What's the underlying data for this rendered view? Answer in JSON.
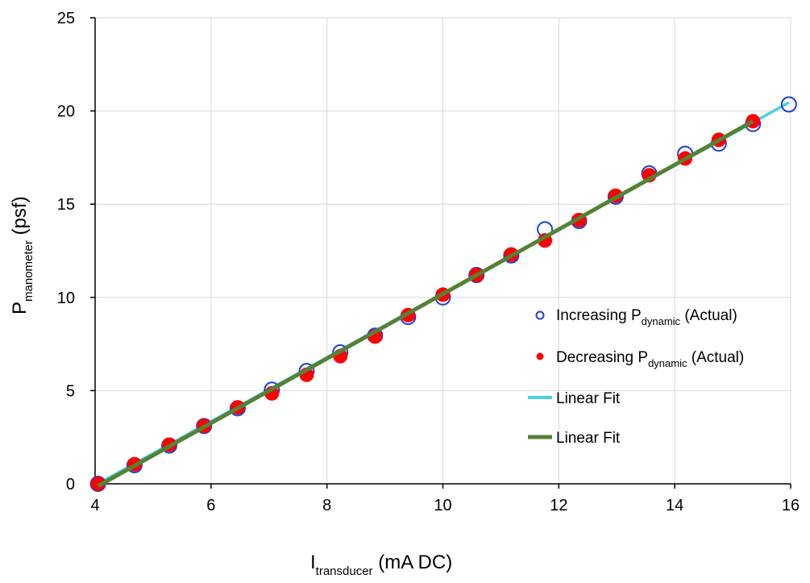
{
  "chart_data": {
    "type": "scatter",
    "x_axis": {
      "label_main": "I",
      "label_sub": "transducer",
      "label_unit": " (mA DC)",
      "range": [
        4,
        16
      ],
      "ticks": [
        4,
        6,
        8,
        10,
        12,
        14,
        16
      ]
    },
    "y_axis": {
      "label_main": "P",
      "label_sub": "manometer",
      "label_unit": " (psf)",
      "range": [
        0,
        25
      ],
      "ticks": [
        0,
        5,
        10,
        15,
        20,
        25
      ]
    },
    "grid": true,
    "legend_position": "right",
    "series": [
      {
        "name_main": "Increasing P",
        "name_sub": "dynamic",
        "name_tail": " (Actual)",
        "marker": "open-circle",
        "color": "#1f3fd6",
        "points": [
          [
            4.05,
            0.0
          ],
          [
            4.68,
            1.0
          ],
          [
            5.28,
            2.05
          ],
          [
            5.88,
            3.1
          ],
          [
            6.46,
            4.05
          ],
          [
            7.05,
            5.05
          ],
          [
            7.65,
            6.05
          ],
          [
            8.23,
            7.05
          ],
          [
            8.83,
            7.95
          ],
          [
            9.4,
            8.95
          ],
          [
            10.0,
            10.0
          ],
          [
            10.58,
            11.2
          ],
          [
            11.18,
            12.25
          ],
          [
            11.76,
            13.65
          ],
          [
            12.35,
            14.1
          ],
          [
            12.98,
            15.4
          ],
          [
            13.56,
            16.65
          ],
          [
            14.18,
            17.7
          ],
          [
            14.76,
            18.25
          ],
          [
            15.35,
            19.3
          ],
          [
            15.97,
            20.35
          ]
        ]
      },
      {
        "name_main": "Decreasing P",
        "name_sub": "dynamic",
        "name_tail": " (Actual)",
        "marker": "filled-circle",
        "color": "#ff0000",
        "points": [
          [
            4.05,
            0.0
          ],
          [
            4.68,
            1.05
          ],
          [
            5.28,
            2.1
          ],
          [
            5.88,
            3.1
          ],
          [
            6.46,
            4.1
          ],
          [
            7.05,
            4.85
          ],
          [
            7.65,
            5.85
          ],
          [
            8.23,
            6.85
          ],
          [
            8.83,
            7.9
          ],
          [
            9.4,
            9.05
          ],
          [
            10.0,
            10.15
          ],
          [
            10.58,
            11.2
          ],
          [
            11.18,
            12.3
          ],
          [
            11.76,
            13.05
          ],
          [
            12.35,
            14.15
          ],
          [
            12.98,
            15.45
          ],
          [
            13.56,
            16.55
          ],
          [
            14.18,
            17.45
          ],
          [
            14.76,
            18.45
          ],
          [
            15.35,
            19.45
          ]
        ]
      },
      {
        "name": "Linear Fit",
        "marker": "line",
        "color": "#4dd0e1",
        "line": [
          [
            4.05,
            0.0
          ],
          [
            15.97,
            20.45
          ]
        ]
      },
      {
        "name": "Linear Fit",
        "marker": "line",
        "color": "#548235",
        "line": [
          [
            4.05,
            -0.12
          ],
          [
            15.35,
            19.45
          ]
        ]
      }
    ]
  }
}
